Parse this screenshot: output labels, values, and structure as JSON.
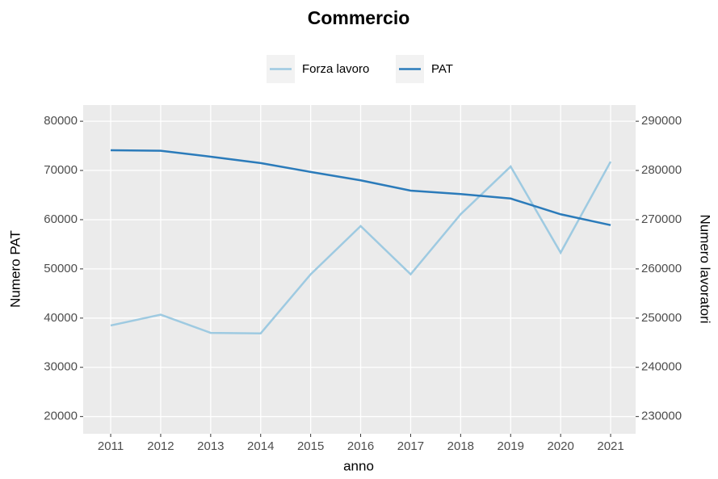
{
  "chart_data": {
    "type": "line",
    "title": "Commercio",
    "x": [
      2011,
      2012,
      2013,
      2014,
      2015,
      2016,
      2017,
      2018,
      2019,
      2020,
      2021
    ],
    "series": [
      {
        "name": "Forza lavoro",
        "color": "#9ecae1",
        "axis": "y2",
        "values": [
          248500,
          250700,
          247000,
          246900,
          258900,
          268700,
          258900,
          271100,
          280800,
          263300,
          281800
        ]
      },
      {
        "name": "PAT",
        "color": "#2b7bba",
        "values": [
          74100,
          74000,
          72800,
          71500,
          69700,
          68000,
          65900,
          65200,
          64300,
          61100,
          58900
        ]
      }
    ],
    "xlabel": "anno",
    "ylabel": "Numero PAT",
    "y2label": "Numero lavoratori",
    "xlim": [
      2010.45,
      2021.5
    ],
    "xticks": [
      2011,
      2012,
      2013,
      2014,
      2015,
      2016,
      2017,
      2018,
      2019,
      2020,
      2021
    ],
    "ylim": [
      16500,
      83300
    ],
    "yticks": [
      20000,
      30000,
      40000,
      50000,
      60000,
      70000,
      80000
    ],
    "y2lim": [
      226500,
      293300
    ],
    "y2ticks": [
      230000,
      240000,
      250000,
      260000,
      270000,
      280000,
      290000
    ],
    "grid": true,
    "legend": "top"
  }
}
